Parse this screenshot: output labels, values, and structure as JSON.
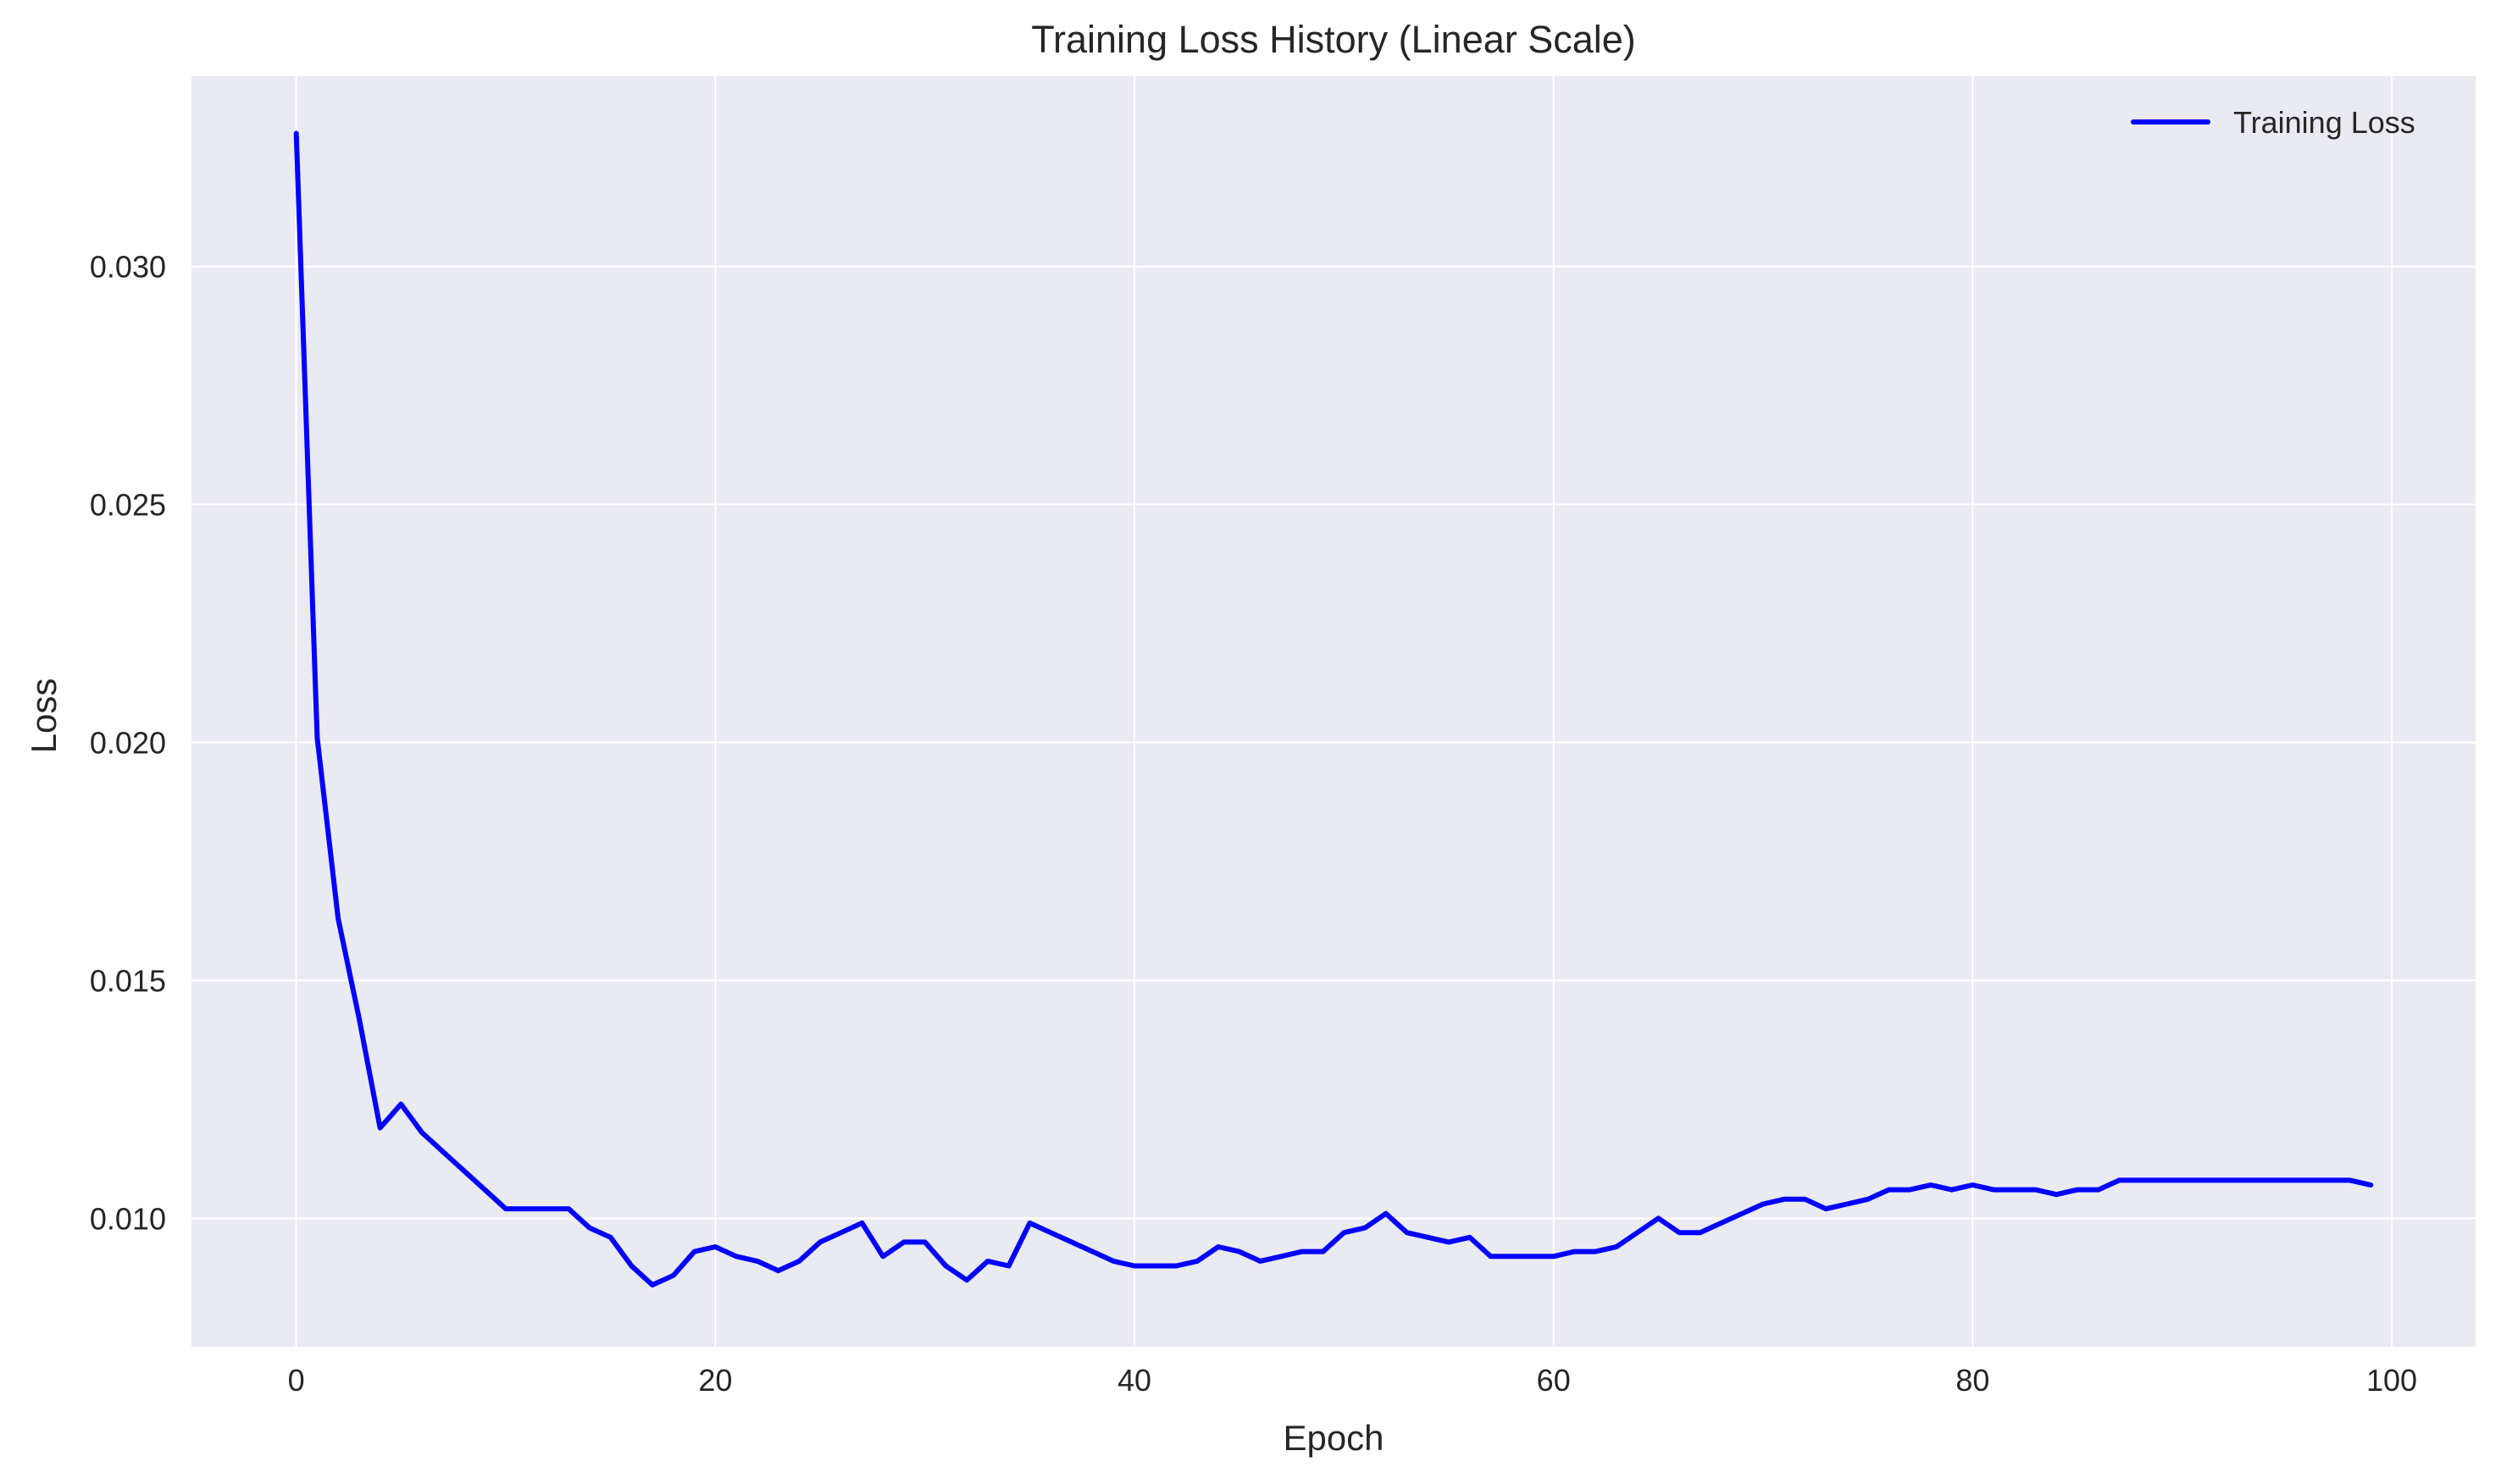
{
  "chart_data": {
    "type": "line",
    "title": "Training Loss History (Linear Scale)",
    "xlabel": "Epoch",
    "ylabel": "Loss",
    "xlim": [
      -5,
      104
    ],
    "ylim": [
      0.0073,
      0.034
    ],
    "x_ticks": [
      0,
      20,
      40,
      60,
      80,
      100
    ],
    "x_tick_labels": [
      "0",
      "20",
      "40",
      "60",
      "80",
      "100"
    ],
    "y_ticks": [
      0.01,
      0.015,
      0.02,
      0.025,
      0.03
    ],
    "y_tick_labels": [
      "0.010",
      "0.015",
      "0.020",
      "0.025",
      "0.030"
    ],
    "grid": true,
    "legend": "top-right",
    "colors": {
      "plot_background": "#eaeaf2",
      "grid": "#ffffff",
      "line": "#0000ff"
    },
    "series": [
      {
        "name": "Training Loss",
        "x": [
          0,
          1,
          2,
          3,
          4,
          5,
          6,
          7,
          8,
          9,
          10,
          11,
          12,
          13,
          14,
          15,
          16,
          17,
          18,
          19,
          20,
          21,
          22,
          23,
          24,
          25,
          26,
          27,
          28,
          29,
          30,
          31,
          32,
          33,
          34,
          35,
          36,
          37,
          38,
          39,
          40,
          41,
          42,
          43,
          44,
          45,
          46,
          47,
          48,
          49,
          50,
          51,
          52,
          53,
          54,
          55,
          56,
          57,
          58,
          59,
          60,
          61,
          62,
          63,
          64,
          65,
          66,
          67,
          68,
          69,
          70,
          71,
          72,
          73,
          74,
          75,
          76,
          77,
          78,
          79,
          80,
          81,
          82,
          83,
          84,
          85,
          86,
          87,
          88,
          89,
          90,
          91,
          92,
          93,
          94,
          95,
          96,
          97,
          98,
          99
        ],
        "values": [
          0.0328,
          0.0201,
          0.0163,
          0.0142,
          0.0119,
          0.0124,
          0.0118,
          0.0114,
          0.011,
          0.0106,
          0.0102,
          0.0102,
          0.0102,
          0.0102,
          0.0098,
          0.0096,
          0.009,
          0.0086,
          0.0088,
          0.0093,
          0.0094,
          0.0092,
          0.0091,
          0.0089,
          0.0091,
          0.0095,
          0.0097,
          0.0099,
          0.0092,
          0.0095,
          0.0095,
          0.009,
          0.0087,
          0.0091,
          0.009,
          0.0099,
          0.0097,
          0.0095,
          0.0093,
          0.0091,
          0.009,
          0.009,
          0.009,
          0.0091,
          0.0094,
          0.0093,
          0.0091,
          0.0092,
          0.0093,
          0.0093,
          0.0097,
          0.0098,
          0.0101,
          0.0097,
          0.0096,
          0.0095,
          0.0096,
          0.0092,
          0.0092,
          0.0092,
          0.0092,
          0.0093,
          0.0093,
          0.0094,
          0.0097,
          0.01,
          0.0097,
          0.0097,
          0.0099,
          0.0101,
          0.0103,
          0.0104,
          0.0104,
          0.0102,
          0.0103,
          0.0104,
          0.0106,
          0.0106,
          0.0107,
          0.0106,
          0.0107,
          0.0106,
          0.0106,
          0.0106,
          0.0105,
          0.0106,
          0.0106,
          0.0108,
          0.0108,
          0.0108,
          0.0108,
          0.0108,
          0.0108,
          0.0108,
          0.0108,
          0.0108,
          0.0108,
          0.0108,
          0.0108,
          0.0107
        ]
      }
    ]
  }
}
